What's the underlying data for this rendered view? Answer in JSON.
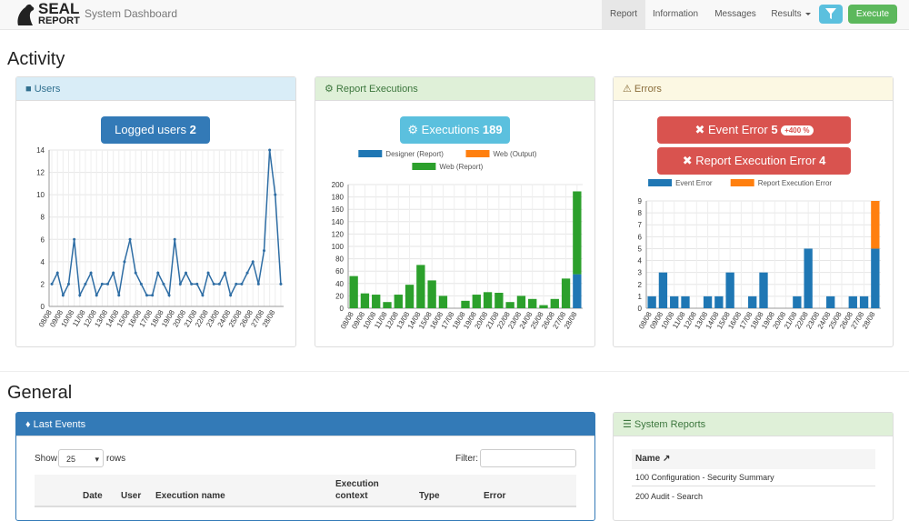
{
  "navbar": {
    "logo_top": "SEAL",
    "logo_bottom": "REPORT",
    "title": "System Dashboard",
    "items": [
      "Report",
      "Information",
      "Messages",
      "Results"
    ],
    "execute": "Execute"
  },
  "activity": {
    "heading": "Activity",
    "users": {
      "title": "Users",
      "button": "Logged users",
      "count": 2,
      "chart": {
        "type": "line",
        "categories": [
          "08/08",
          null,
          "09/08",
          null,
          "10/08",
          null,
          "11/08",
          null,
          "12/08",
          null,
          "13/08",
          null,
          "14/08",
          null,
          "15/08",
          null,
          "16/08",
          null,
          "17/08",
          null,
          "18/08",
          null,
          "19/08",
          null,
          "20/08",
          null,
          "21/08",
          null,
          "22/08",
          null,
          "23/08",
          null,
          "24/08",
          null,
          "25/08",
          null,
          "26/08",
          null,
          "27/08",
          null,
          "28/08",
          null
        ],
        "series": [
          {
            "name": "Users",
            "color": "#2e6da4",
            "values": [
              2,
              3,
              1,
              2,
              6,
              1,
              2,
              3,
              1,
              2,
              2,
              3,
              1,
              4,
              6,
              3,
              2,
              1,
              1,
              3,
              2,
              1,
              6,
              2,
              3,
              2,
              2,
              1,
              3,
              2,
              2,
              3,
              1,
              2,
              2,
              3,
              4,
              2,
              5,
              14,
              10,
              2
            ]
          }
        ],
        "ylim": [
          0,
          14
        ],
        "yticks": [
          0,
          2,
          4,
          6,
          8,
          10,
          12,
          14
        ],
        "grid": true
      }
    },
    "executions": {
      "title": "Report Executions",
      "button": "Executions",
      "count": 189,
      "chart": {
        "type": "bar",
        "stacked": true,
        "legend": "top",
        "categories": [
          "08/08",
          "09/08",
          "10/08",
          "11/08",
          "12/08",
          "13/08",
          "14/08",
          "15/08",
          "16/08",
          "17/08",
          "18/08",
          "19/08",
          "20/08",
          "21/08",
          "22/08",
          "23/08",
          "24/08",
          "25/08",
          "26/08",
          "27/08",
          "28/08"
        ],
        "series": [
          {
            "name": "Designer (Report)",
            "color": "#1f77b4",
            "values": [
              0,
              0,
              0,
              0,
              0,
              0,
              0,
              0,
              0,
              0,
              0,
              0,
              0,
              0,
              0,
              0,
              0,
              0,
              0,
              0,
              55
            ]
          },
          {
            "name": "Web (Output)",
            "color": "#ff7f0e",
            "values": [
              0,
              0,
              0,
              0,
              0,
              0,
              0,
              0,
              0,
              0,
              0,
              0,
              0,
              0,
              0,
              0,
              0,
              0,
              0,
              0,
              0
            ]
          },
          {
            "name": "Web (Report)",
            "color": "#2ca02c",
            "values": [
              52,
              24,
              22,
              10,
              22,
              38,
              70,
              45,
              20,
              0,
              12,
              22,
              26,
              25,
              10,
              20,
              15,
              5,
              15,
              48,
              134
            ]
          }
        ],
        "ylim": [
          0,
          200
        ],
        "yticks": [
          0,
          20,
          40,
          60,
          80,
          100,
          120,
          140,
          160,
          180,
          200
        ],
        "grid": true
      }
    },
    "errors": {
      "title": "Errors",
      "buttons": [
        {
          "label": "Event Error",
          "count": 5,
          "badge": "+400 %"
        },
        {
          "label": "Report Execution Error",
          "count": 4
        }
      ],
      "chart": {
        "type": "bar",
        "stacked": true,
        "legend": "top",
        "categories": [
          "08/08",
          "09/08",
          "10/08",
          "11/08",
          "12/08",
          "13/08",
          "14/08",
          "15/08",
          "16/08",
          "17/08",
          "18/08",
          "19/08",
          "20/08",
          "21/08",
          "22/08",
          "23/08",
          "24/08",
          "25/08",
          "26/08",
          "27/08",
          "28/08"
        ],
        "series": [
          {
            "name": "Event Error",
            "color": "#1f77b4",
            "values": [
              1,
              3,
              1,
              1,
              0,
              1,
              1,
              3,
              0,
              1,
              3,
              0,
              0,
              1,
              5,
              0,
              1,
              0,
              1,
              1,
              5
            ]
          },
          {
            "name": "Report Execution Error",
            "color": "#ff7f0e",
            "values": [
              0,
              0,
              0,
              0,
              0,
              0,
              0,
              0,
              0,
              0,
              0,
              0,
              0,
              0,
              0,
              0,
              0,
              0,
              0,
              0,
              4
            ]
          }
        ],
        "ylim": [
          0,
          9
        ],
        "yticks": [
          0,
          1,
          2,
          3,
          4,
          5,
          6,
          7,
          8,
          9
        ],
        "grid": true
      }
    }
  },
  "general": {
    "heading": "General",
    "last_events": {
      "title": "Last Events",
      "show": "Show",
      "page_size": "25",
      "rows": "rows",
      "filter": "Filter:",
      "columns": [
        "Date",
        "User",
        "Execution name",
        "Execution context",
        "Type",
        "Error"
      ]
    },
    "system_reports": {
      "title": "System Reports",
      "column": "Name",
      "rows": [
        "100 Configuration - Security Summary",
        "200 Audit - Search"
      ]
    }
  }
}
